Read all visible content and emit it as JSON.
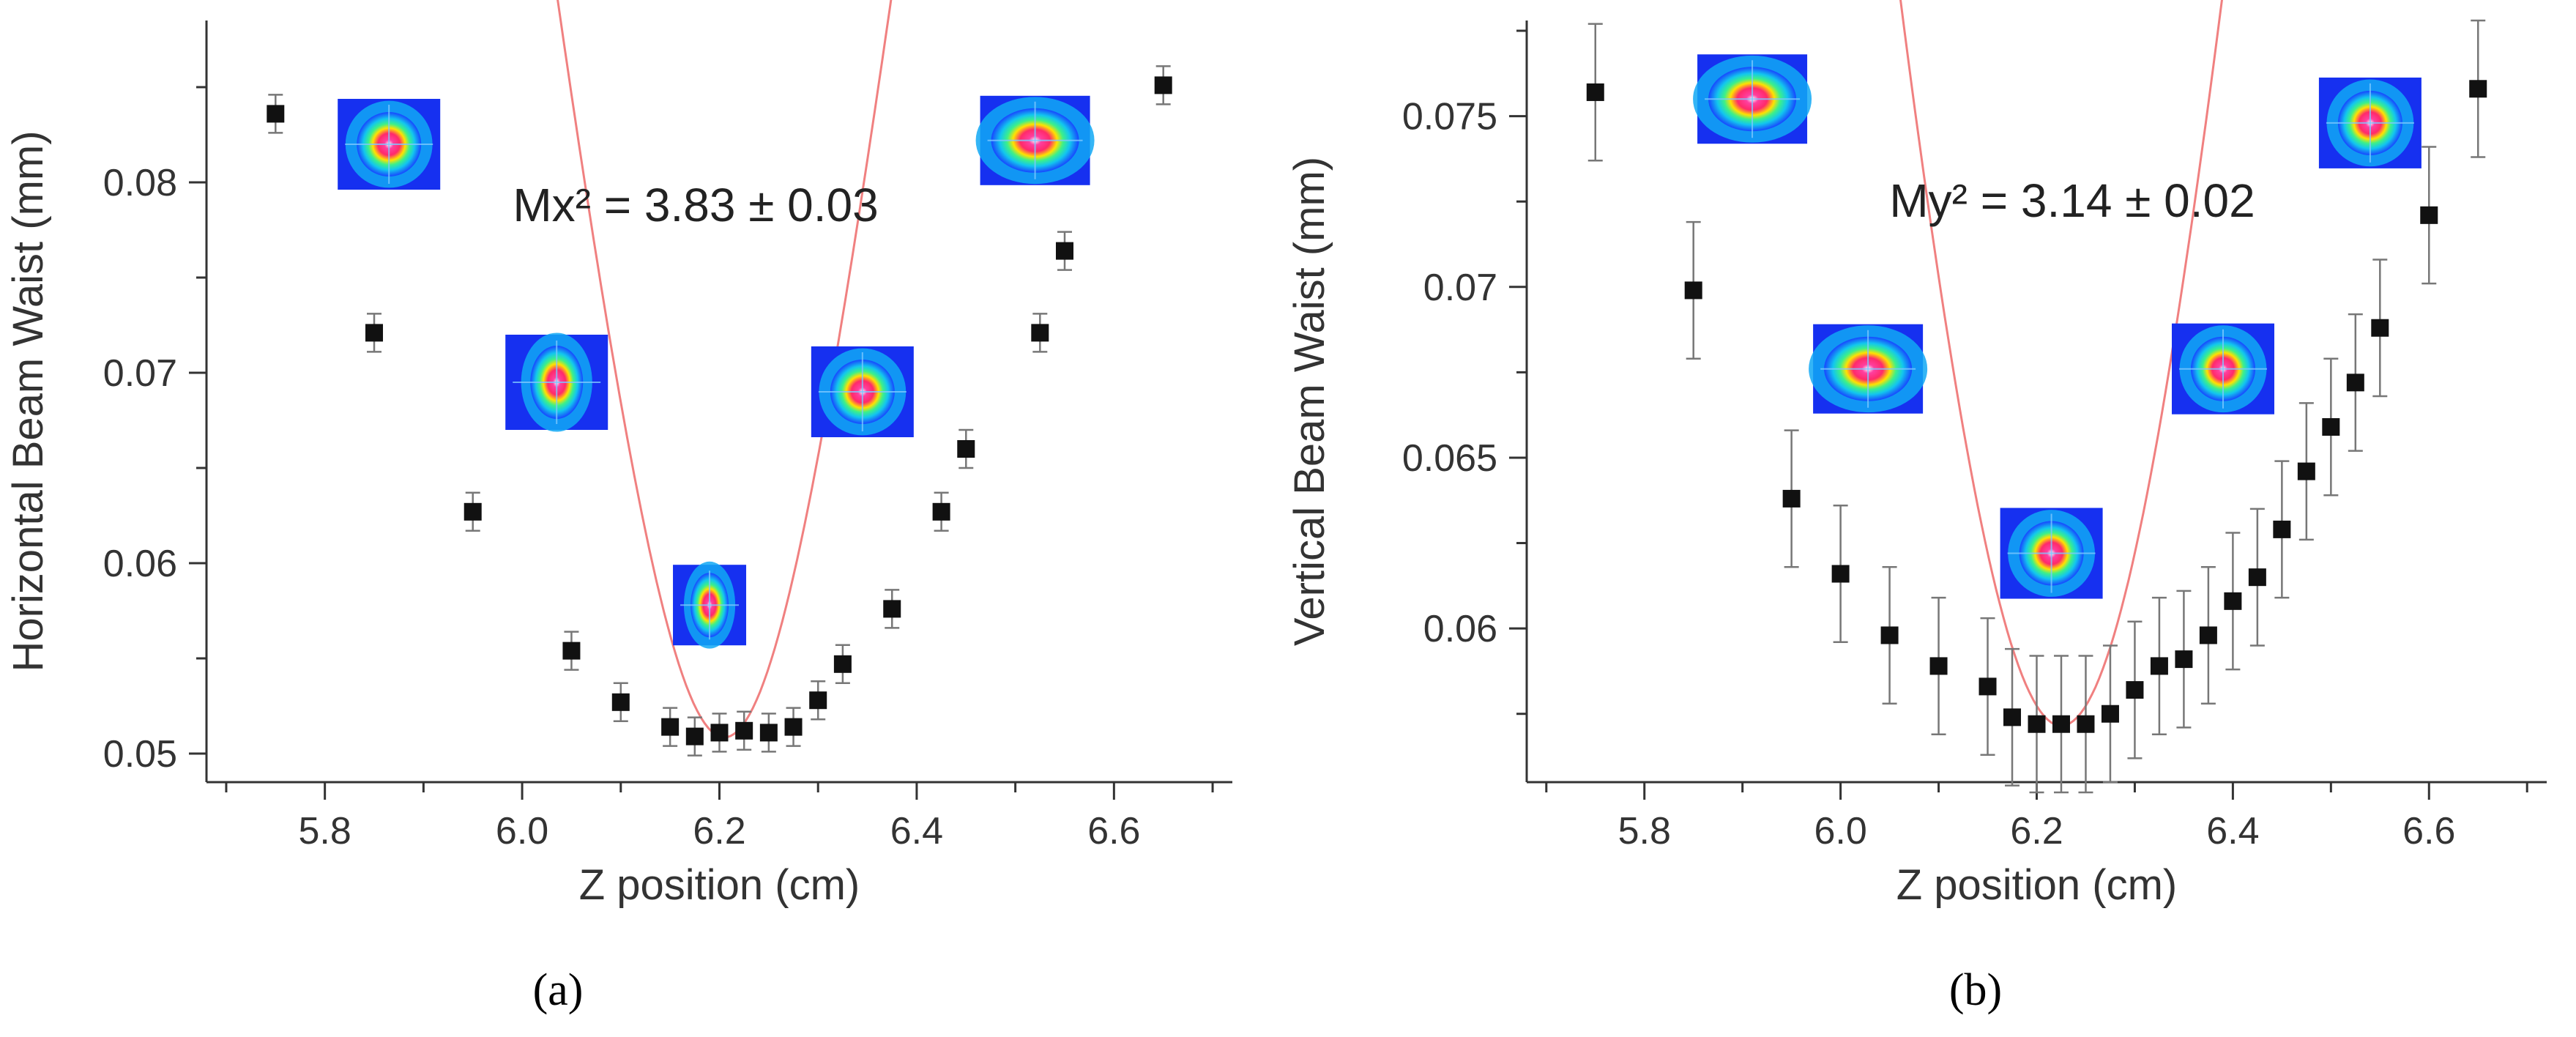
{
  "colors": {
    "fit": "#f08080",
    "marker": "#111111",
    "errorbar": "#777777",
    "axis": "#333333"
  },
  "chart_data": [
    {
      "type": "scatter",
      "panel_label": "(a)",
      "xlabel": "Z position (cm)",
      "ylabel": "Horizontal Beam Waist (mm)",
      "xlim": [
        5.68,
        6.72
      ],
      "ylim": [
        0.0485,
        0.0885
      ],
      "xticks": [
        {
          "value": 5.8,
          "label": "5.8"
        },
        {
          "value": 6.0,
          "label": "6.0"
        },
        {
          "value": 6.2,
          "label": "6.2"
        },
        {
          "value": 6.4,
          "label": "6.4"
        },
        {
          "value": 6.6,
          "label": "6.6"
        }
      ],
      "yticks": [
        {
          "value": 0.05,
          "label": "0.05"
        },
        {
          "value": 0.06,
          "label": "0.06"
        },
        {
          "value": 0.07,
          "label": "0.07"
        },
        {
          "value": 0.08,
          "label": "0.08"
        }
      ],
      "annotation": "Mx² = 3.83 ± 0.03",
      "fit": {
        "w0": 0.05085,
        "z0": 6.205,
        "zr": 0.1165
      },
      "points": [
        {
          "x": 5.75,
          "y": 0.0836,
          "err": 0.001
        },
        {
          "x": 5.85,
          "y": 0.0721,
          "err": 0.001
        },
        {
          "x": 5.95,
          "y": 0.0627,
          "err": 0.001
        },
        {
          "x": 6.05,
          "y": 0.0554,
          "err": 0.001
        },
        {
          "x": 6.1,
          "y": 0.0527,
          "err": 0.001
        },
        {
          "x": 6.15,
          "y": 0.0514,
          "err": 0.001
        },
        {
          "x": 6.175,
          "y": 0.0509,
          "err": 0.001
        },
        {
          "x": 6.2,
          "y": 0.0511,
          "err": 0.001
        },
        {
          "x": 6.225,
          "y": 0.0512,
          "err": 0.001
        },
        {
          "x": 6.25,
          "y": 0.0511,
          "err": 0.001
        },
        {
          "x": 6.275,
          "y": 0.0514,
          "err": 0.001
        },
        {
          "x": 6.3,
          "y": 0.0528,
          "err": 0.001
        },
        {
          "x": 6.325,
          "y": 0.0547,
          "err": 0.001
        },
        {
          "x": 6.375,
          "y": 0.0576,
          "err": 0.001
        },
        {
          "x": 6.425,
          "y": 0.0627,
          "err": 0.001
        },
        {
          "x": 6.45,
          "y": 0.066,
          "err": 0.001
        },
        {
          "x": 6.525,
          "y": 0.0721,
          "err": 0.001
        },
        {
          "x": 6.55,
          "y": 0.0764,
          "err": 0.001
        },
        {
          "x": 6.65,
          "y": 0.0851,
          "err": 0.001
        }
      ],
      "beam_profiles": [
        {
          "name": "beam-profile-a-5.8",
          "x": 5.865,
          "y": 0.082,
          "shape": "round"
        },
        {
          "name": "beam-profile-a-6.0",
          "x": 6.035,
          "y": 0.0695,
          "shape": "tall"
        },
        {
          "name": "beam-profile-a-6.2",
          "x": 6.19,
          "y": 0.0578,
          "shape": "thin"
        },
        {
          "name": "beam-profile-a-6.35",
          "x": 6.345,
          "y": 0.069,
          "shape": "round"
        },
        {
          "name": "beam-profile-a-6.5",
          "x": 6.52,
          "y": 0.0822,
          "shape": "wide"
        }
      ]
    },
    {
      "type": "scatter",
      "panel_label": "(b)",
      "xlabel": "Z position (cm)",
      "ylabel": "Vertical Beam Waist (mm)",
      "xlim": [
        5.68,
        6.72
      ],
      "ylim": [
        0.0555,
        0.0778
      ],
      "xticks": [
        {
          "value": 5.8,
          "label": "5.8"
        },
        {
          "value": 6.0,
          "label": "6.0"
        },
        {
          "value": 6.2,
          "label": "6.2"
        },
        {
          "value": 6.4,
          "label": "6.4"
        },
        {
          "value": 6.6,
          "label": "6.6"
        }
      ],
      "yticks": [
        {
          "value": 0.06,
          "label": "0.06"
        },
        {
          "value": 0.065,
          "label": "0.065"
        },
        {
          "value": 0.07,
          "label": "0.07"
        },
        {
          "value": 0.075,
          "label": "0.075"
        }
      ],
      "annotation": "My² = 3.14 ± 0.02",
      "fit": {
        "w0": 0.05715,
        "z0": 6.225,
        "zr": 0.1745
      },
      "points": [
        {
          "x": 5.75,
          "y": 0.0757,
          "err": 0.002
        },
        {
          "x": 5.85,
          "y": 0.0699,
          "err": 0.002
        },
        {
          "x": 5.95,
          "y": 0.0638,
          "err": 0.002
        },
        {
          "x": 6.0,
          "y": 0.0616,
          "err": 0.002
        },
        {
          "x": 6.05,
          "y": 0.0598,
          "err": 0.002
        },
        {
          "x": 6.1,
          "y": 0.0589,
          "err": 0.002
        },
        {
          "x": 6.15,
          "y": 0.0583,
          "err": 0.002
        },
        {
          "x": 6.175,
          "y": 0.0574,
          "err": 0.002
        },
        {
          "x": 6.2,
          "y": 0.0572,
          "err": 0.002
        },
        {
          "x": 6.225,
          "y": 0.0572,
          "err": 0.002
        },
        {
          "x": 6.25,
          "y": 0.0572,
          "err": 0.002
        },
        {
          "x": 6.275,
          "y": 0.0575,
          "err": 0.002
        },
        {
          "x": 6.3,
          "y": 0.0582,
          "err": 0.002
        },
        {
          "x": 6.325,
          "y": 0.0589,
          "err": 0.002
        },
        {
          "x": 6.35,
          "y": 0.0591,
          "err": 0.002
        },
        {
          "x": 6.375,
          "y": 0.0598,
          "err": 0.002
        },
        {
          "x": 6.4,
          "y": 0.0608,
          "err": 0.002
        },
        {
          "x": 6.425,
          "y": 0.0615,
          "err": 0.002
        },
        {
          "x": 6.45,
          "y": 0.0629,
          "err": 0.002
        },
        {
          "x": 6.475,
          "y": 0.0646,
          "err": 0.002
        },
        {
          "x": 6.5,
          "y": 0.0659,
          "err": 0.002
        },
        {
          "x": 6.525,
          "y": 0.0672,
          "err": 0.002
        },
        {
          "x": 6.55,
          "y": 0.0688,
          "err": 0.002
        },
        {
          "x": 6.6,
          "y": 0.0721,
          "err": 0.002
        },
        {
          "x": 6.65,
          "y": 0.0758,
          "err": 0.002
        }
      ],
      "beam_profiles": [
        {
          "name": "beam-profile-b-5.9",
          "x": 5.91,
          "y": 0.0755,
          "shape": "wide"
        },
        {
          "name": "beam-profile-b-6.0",
          "x": 6.028,
          "y": 0.0676,
          "shape": "wide"
        },
        {
          "name": "beam-profile-b-6.2",
          "x": 6.215,
          "y": 0.0622,
          "shape": "round"
        },
        {
          "name": "beam-profile-b-6.4",
          "x": 6.39,
          "y": 0.0676,
          "shape": "round"
        },
        {
          "name": "beam-profile-b-6.5",
          "x": 6.54,
          "y": 0.0748,
          "shape": "round"
        }
      ]
    }
  ]
}
